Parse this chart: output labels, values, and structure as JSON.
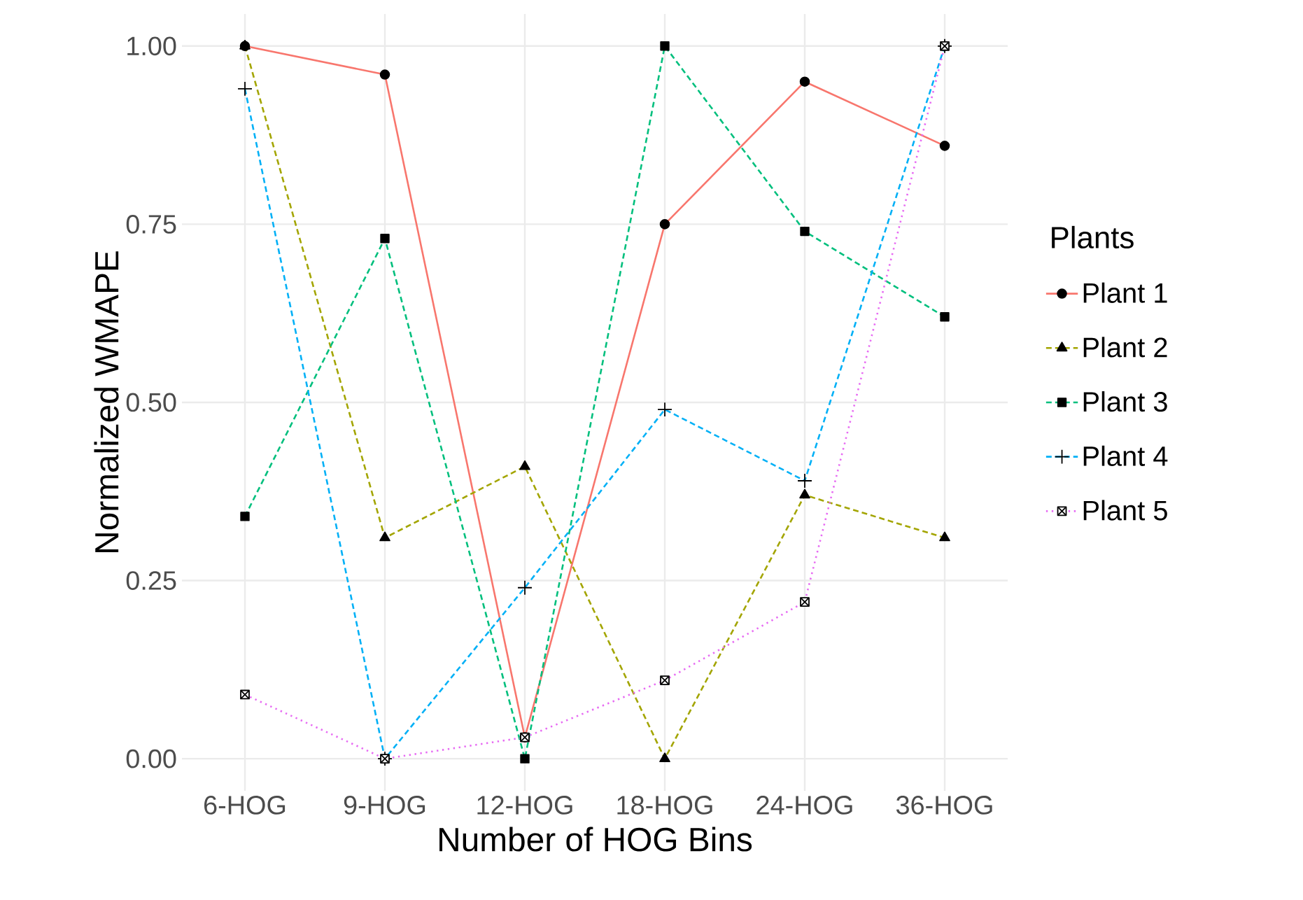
{
  "chart_data": {
    "type": "line",
    "xlabel": "Number of HOG Bins",
    "ylabel": "Normalized WMAPE",
    "legend_title": "Plants",
    "categories": [
      "6-HOG",
      "9-HOG",
      "12-HOG",
      "18-HOG",
      "24-HOG",
      "36-HOG"
    ],
    "series": [
      {
        "name": "Plant 1",
        "color": "#f8766d",
        "marker": "circle",
        "line_style": "solid",
        "values": [
          1.0,
          0.96,
          0.03,
          0.75,
          0.95,
          0.86
        ]
      },
      {
        "name": "Plant 2",
        "color": "#a3a500",
        "marker": "triangle",
        "line_style": "dashed",
        "values": [
          1.0,
          0.31,
          0.41,
          0.0,
          0.37,
          0.31
        ]
      },
      {
        "name": "Plant 3",
        "color": "#00bf7d",
        "marker": "square",
        "line_style": "dashed",
        "values": [
          0.34,
          0.73,
          0.0,
          1.0,
          0.74,
          0.62
        ]
      },
      {
        "name": "Plant 4",
        "color": "#00b0f6",
        "marker": "cross",
        "line_style": "dashed",
        "values": [
          0.94,
          0.0,
          0.24,
          0.49,
          0.39,
          1.0
        ]
      },
      {
        "name": "Plant 5",
        "color": "#e76bf3",
        "marker": "square",
        "line_style": "dotted",
        "values": [
          0.09,
          0.0,
          0.03,
          0.11,
          0.22,
          1.0
        ]
      }
    ],
    "ylim": [
      -0.045,
      1.045
    ],
    "yticks": [
      {
        "value": 0,
        "label": "0.00"
      },
      {
        "value": 0.25,
        "label": "0.25"
      },
      {
        "value": 0.5,
        "label": "0.50"
      },
      {
        "value": 0.75,
        "label": "0.75"
      },
      {
        "value": 1,
        "label": "1.00"
      }
    ],
    "grid": true,
    "legend": "right"
  }
}
